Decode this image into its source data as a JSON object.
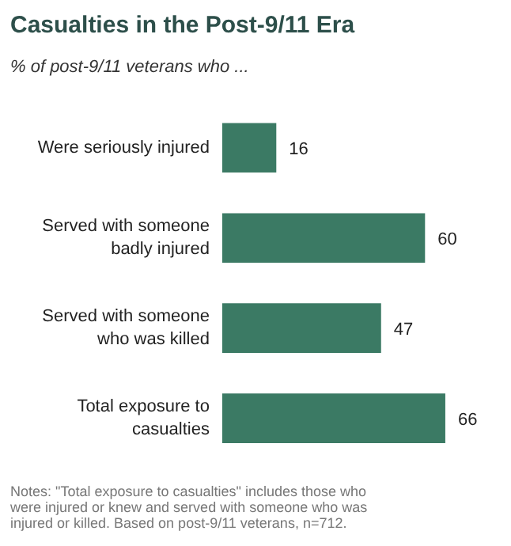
{
  "chart_data": {
    "type": "bar",
    "orientation": "horizontal",
    "title": "Casualties in the Post-9/11 Era",
    "subtitle": "% of post-9/11 veterans who ...",
    "categories": [
      "Were seriously injured",
      "Served with someone badly injured",
      "Served with someone who was killed",
      "Total exposure to casualties"
    ],
    "values": [
      16,
      60,
      47,
      66
    ],
    "color": "#3b7a64",
    "data_labels": true,
    "annotations": [
      "Notes: \"Total exposure to casualties\" includes those who were injured or knew and served with someone who was injured or killed. Based on post-9/11 veterans, n=712."
    ]
  }
}
